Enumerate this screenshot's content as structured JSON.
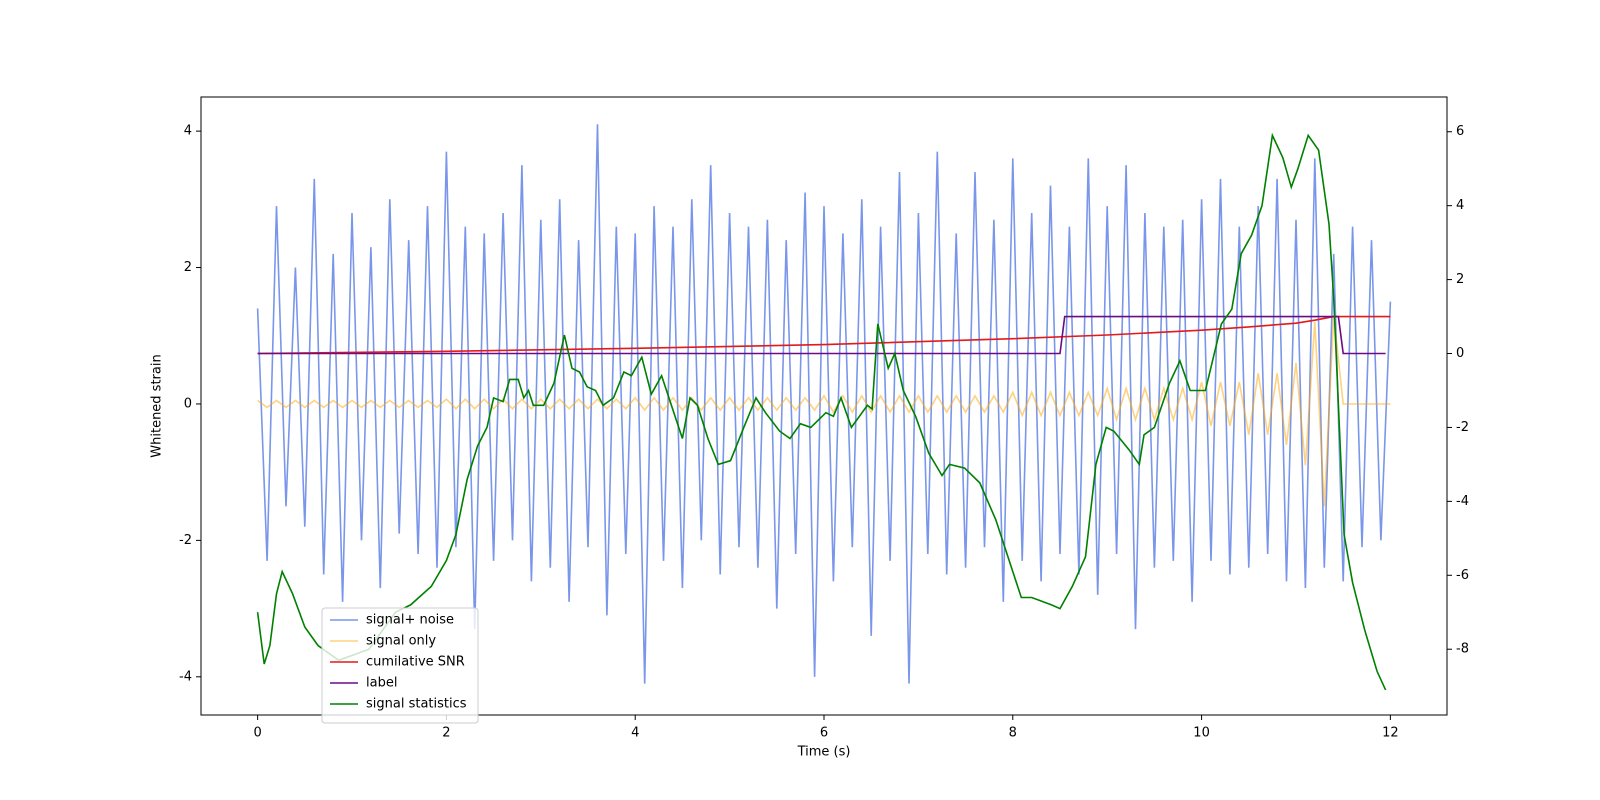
{
  "chart_data": {
    "type": "line",
    "xlabel": "Time (s)",
    "ylabel": "Whitened strain",
    "xlim": [
      -0.6,
      12.6
    ],
    "ylim": [
      -4.56,
      4.5
    ],
    "y2lim": [
      -9.78,
      6.94
    ],
    "xticks": [
      0,
      2,
      4,
      6,
      8,
      10,
      12
    ],
    "yticks": [
      -4,
      -2,
      0,
      2,
      4
    ],
    "y2ticks": [
      -8,
      -6,
      -4,
      -2,
      0,
      2,
      4,
      6
    ],
    "legend_loc": "lower left",
    "x": [
      0,
      0.1,
      0.2,
      0.3,
      0.4,
      0.5,
      0.6,
      0.7,
      0.8,
      0.9,
      1,
      1.1,
      1.2,
      1.3,
      1.4,
      1.5,
      1.6,
      1.7,
      1.8,
      1.9,
      2,
      2.1,
      2.2,
      2.3,
      2.4,
      2.5,
      2.6,
      2.7,
      2.8,
      2.9,
      3,
      3.1,
      3.2,
      3.3,
      3.4,
      3.5,
      3.6,
      3.7,
      3.8,
      3.9,
      4,
      4.1,
      4.2,
      4.3,
      4.4,
      4.5,
      4.6,
      4.7,
      4.8,
      4.9,
      5,
      5.1,
      5.2,
      5.3,
      5.4,
      5.5,
      5.6,
      5.7,
      5.8,
      5.9,
      6,
      6.1,
      6.2,
      6.3,
      6.4,
      6.5,
      6.6,
      6.7,
      6.8,
      6.9,
      7,
      7.1,
      7.2,
      7.3,
      7.4,
      7.5,
      7.6,
      7.7,
      7.8,
      7.9,
      8,
      8.1,
      8.2,
      8.3,
      8.4,
      8.5,
      8.6,
      8.7,
      8.8,
      8.9,
      9,
      9.1,
      9.2,
      9.3,
      9.4,
      9.5,
      9.6,
      9.7,
      9.8,
      9.9,
      10,
      10.1,
      10.2,
      10.3,
      10.4,
      10.5,
      10.6,
      10.7,
      10.8,
      10.9,
      11,
      11.1,
      11.2,
      11.3,
      11.4,
      11.5,
      11.6,
      11.7,
      11.8,
      11.9,
      12
    ],
    "series": [
      {
        "name": "signal+ noise",
        "color": "#4169e1",
        "values": [
          1.4,
          -2.3,
          2.9,
          -1.5,
          2.0,
          -1.8,
          3.3,
          -2.5,
          2.2,
          -2.9,
          2.8,
          -2.0,
          2.3,
          -2.7,
          3.0,
          -1.9,
          2.4,
          -2.2,
          2.9,
          -2.4,
          3.7,
          -2.1,
          2.6,
          -3.3,
          2.5,
          -2.3,
          2.8,
          -2.0,
          3.5,
          -2.6,
          2.7,
          -2.4,
          3.0,
          -2.9,
          2.4,
          -2.1,
          4.1,
          -3.1,
          2.6,
          -2.2,
          2.5,
          -4.1,
          2.9,
          -2.3,
          2.6,
          -2.7,
          3.0,
          -2.0,
          3.5,
          -2.5,
          2.8,
          -2.1,
          2.6,
          -2.4,
          2.7,
          -3.0,
          2.4,
          -2.2,
          3.1,
          -4.0,
          2.9,
          -2.6,
          2.5,
          -2.1,
          3.0,
          -3.4,
          2.6,
          -2.3,
          3.4,
          -4.1,
          2.8,
          -2.2,
          3.7,
          -2.5,
          2.5,
          -2.4,
          3.4,
          -2.1,
          2.7,
          -2.9,
          3.6,
          -2.3,
          2.8,
          -2.6,
          3.2,
          -2.2,
          2.6,
          -2.5,
          3.6,
          -2.8,
          2.9,
          -2.2,
          3.5,
          -3.3,
          2.8,
          -2.4,
          2.6,
          -2.3,
          2.7,
          -2.9,
          3.0,
          -2.3,
          3.3,
          -2.5,
          2.6,
          -2.4,
          2.9,
          -2.2,
          3.3,
          -2.6,
          2.7,
          -2.7,
          3.6,
          -2.4,
          2.2,
          -2.6,
          2.6,
          -2.1,
          2.4,
          -2.0,
          1.5
        ]
      },
      {
        "name": "signal only",
        "color": "#ffa500",
        "values": [
          0.05,
          -0.05,
          0.05,
          -0.05,
          0.05,
          -0.05,
          0.05,
          -0.05,
          0.05,
          -0.05,
          0.05,
          -0.05,
          0.05,
          -0.05,
          0.05,
          -0.05,
          0.05,
          -0.05,
          0.05,
          -0.05,
          0.07,
          -0.07,
          0.07,
          -0.07,
          0.07,
          -0.07,
          0.07,
          -0.07,
          0.07,
          -0.07,
          0.07,
          -0.07,
          0.07,
          -0.07,
          0.07,
          -0.07,
          0.07,
          -0.07,
          0.07,
          -0.07,
          0.09,
          -0.09,
          0.09,
          -0.09,
          0.09,
          -0.09,
          0.09,
          -0.09,
          0.09,
          -0.09,
          0.09,
          -0.09,
          0.09,
          -0.09,
          0.09,
          -0.09,
          0.09,
          -0.09,
          0.09,
          -0.09,
          0.12,
          -0.12,
          0.12,
          -0.12,
          0.12,
          -0.12,
          0.12,
          -0.12,
          0.12,
          -0.12,
          0.12,
          -0.12,
          0.12,
          -0.12,
          0.12,
          -0.12,
          0.12,
          -0.12,
          0.12,
          -0.12,
          0.17,
          -0.17,
          0.17,
          -0.17,
          0.17,
          -0.17,
          0.17,
          -0.17,
          0.17,
          -0.17,
          0.23,
          -0.23,
          0.23,
          -0.23,
          0.23,
          -0.23,
          0.23,
          -0.23,
          0.23,
          -0.23,
          0.32,
          -0.32,
          0.32,
          -0.32,
          0.32,
          -0.45,
          0.45,
          -0.45,
          0.45,
          -0.6,
          0.6,
          -0.9,
          1.2,
          -1.5,
          1.3,
          0,
          0,
          0,
          0,
          0,
          0
        ]
      },
      {
        "name": "cumilative SNR",
        "color": "#e31a1c",
        "axis": "y2",
        "x": [
          0,
          2,
          4,
          6,
          8,
          9,
          10,
          10.5,
          11,
          11.2,
          11.4,
          12
        ],
        "values": [
          0,
          0.06,
          0.14,
          0.24,
          0.4,
          0.5,
          0.63,
          0.72,
          0.82,
          0.9,
          1,
          1
        ]
      },
      {
        "name": "label",
        "color": "#6a0d83",
        "axis": "y2",
        "x": [
          0,
          8.5,
          8.55,
          11.45,
          11.5,
          11.95
        ],
        "values": [
          0,
          0,
          1,
          1,
          0,
          0
        ]
      },
      {
        "name": "signal statistics",
        "color": "#008000",
        "axis": "y2",
        "x": [
          0,
          0.07,
          0.13,
          0.2,
          0.26,
          0.37,
          0.5,
          0.64,
          0.86,
          1.18,
          1.46,
          1.62,
          1.84,
          2.0,
          2.1,
          2.22,
          2.33,
          2.43,
          2.5,
          2.6,
          2.67,
          2.76,
          2.82,
          2.87,
          2.92,
          3.03,
          3.14,
          3.25,
          3.33,
          3.41,
          3.49,
          3.58,
          3.66,
          3.77,
          3.88,
          3.96,
          4.07,
          4.17,
          4.28,
          4.5,
          4.58,
          4.66,
          4.77,
          4.88,
          5.01,
          5.15,
          5.28,
          5.38,
          5.53,
          5.64,
          5.75,
          5.86,
          6.02,
          6.1,
          6.18,
          6.29,
          6.46,
          6.51,
          6.57,
          6.68,
          6.75,
          6.84,
          6.97,
          7.11,
          7.25,
          7.33,
          7.49,
          7.65,
          7.82,
          8.09,
          8.2,
          8.41,
          8.5,
          8.63,
          8.77,
          8.88,
          8.99,
          9.07,
          9.23,
          9.34,
          9.39,
          9.5,
          9.66,
          9.77,
          9.88,
          10.04,
          10.21,
          10.32,
          10.42,
          10.53,
          10.64,
          10.75,
          10.86,
          10.95,
          11.02,
          11.13,
          11.24,
          11.35,
          11.4,
          11.51,
          11.6,
          11.73,
          11.86,
          11.95
        ],
        "values": [
          -7.0,
          -8.4,
          -7.9,
          -6.5,
          -5.9,
          -6.5,
          -7.4,
          -7.9,
          -8.3,
          -8.0,
          -7.0,
          -6.8,
          -6.3,
          -5.6,
          -4.9,
          -3.4,
          -2.5,
          -2.0,
          -1.2,
          -1.3,
          -0.7,
          -0.7,
          -1.2,
          -1.0,
          -1.4,
          -1.4,
          -0.8,
          0.5,
          -0.4,
          -0.5,
          -0.9,
          -1.0,
          -1.4,
          -1.2,
          -0.5,
          -0.6,
          -0.1,
          -1.1,
          -0.6,
          -2.3,
          -1.2,
          -1.4,
          -2.3,
          -3.0,
          -2.9,
          -2.0,
          -1.2,
          -1.6,
          -2.1,
          -2.3,
          -1.9,
          -2.0,
          -1.6,
          -1.7,
          -1.2,
          -2.0,
          -1.4,
          -1.5,
          0.8,
          -0.4,
          0.0,
          -1.0,
          -1.7,
          -2.7,
          -3.3,
          -3.0,
          -3.1,
          -3.5,
          -4.5,
          -6.6,
          -6.6,
          -6.8,
          -6.9,
          -6.3,
          -5.5,
          -3.0,
          -2.0,
          -2.1,
          -2.6,
          -3.0,
          -2.2,
          -2.0,
          -0.8,
          -0.2,
          -1.0,
          -1.0,
          0.8,
          1.2,
          2.7,
          3.2,
          4.0,
          5.9,
          5.3,
          4.5,
          5.0,
          5.9,
          5.5,
          3.5,
          1.5,
          -4.9,
          -6.2,
          -7.5,
          -8.6,
          -9.1
        ]
      }
    ]
  }
}
